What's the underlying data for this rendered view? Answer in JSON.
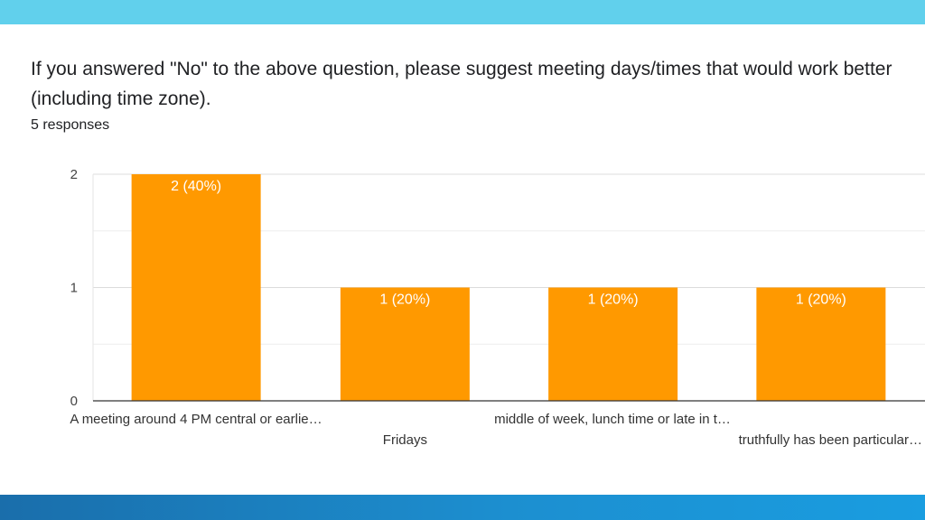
{
  "page": {
    "question": "If you answered \"No\" to the above question, please suggest meeting days/times that would work better (including time zone).",
    "responses": "5 responses"
  },
  "colors": {
    "bar": "#ff9900",
    "top_band": "#61d0ec",
    "bottom_band": "#1c8fd0",
    "gridline": "#e6e6e6",
    "axis": "#333333"
  },
  "chart_data": {
    "type": "bar",
    "categories": [
      "A meeting around 4 PM central or earlie…",
      "Fridays",
      "middle of week, lunch time or late in t…",
      "truthfully has been particular…"
    ],
    "values": [
      2,
      1,
      1,
      1
    ],
    "data_labels": [
      "2 (40%)",
      "1 (20%)",
      "1 (20%)",
      "1 (20%)"
    ],
    "y_ticks": [
      "0",
      "1",
      "2"
    ],
    "ylim": [
      0,
      2
    ],
    "grid": true,
    "legend": "none"
  }
}
